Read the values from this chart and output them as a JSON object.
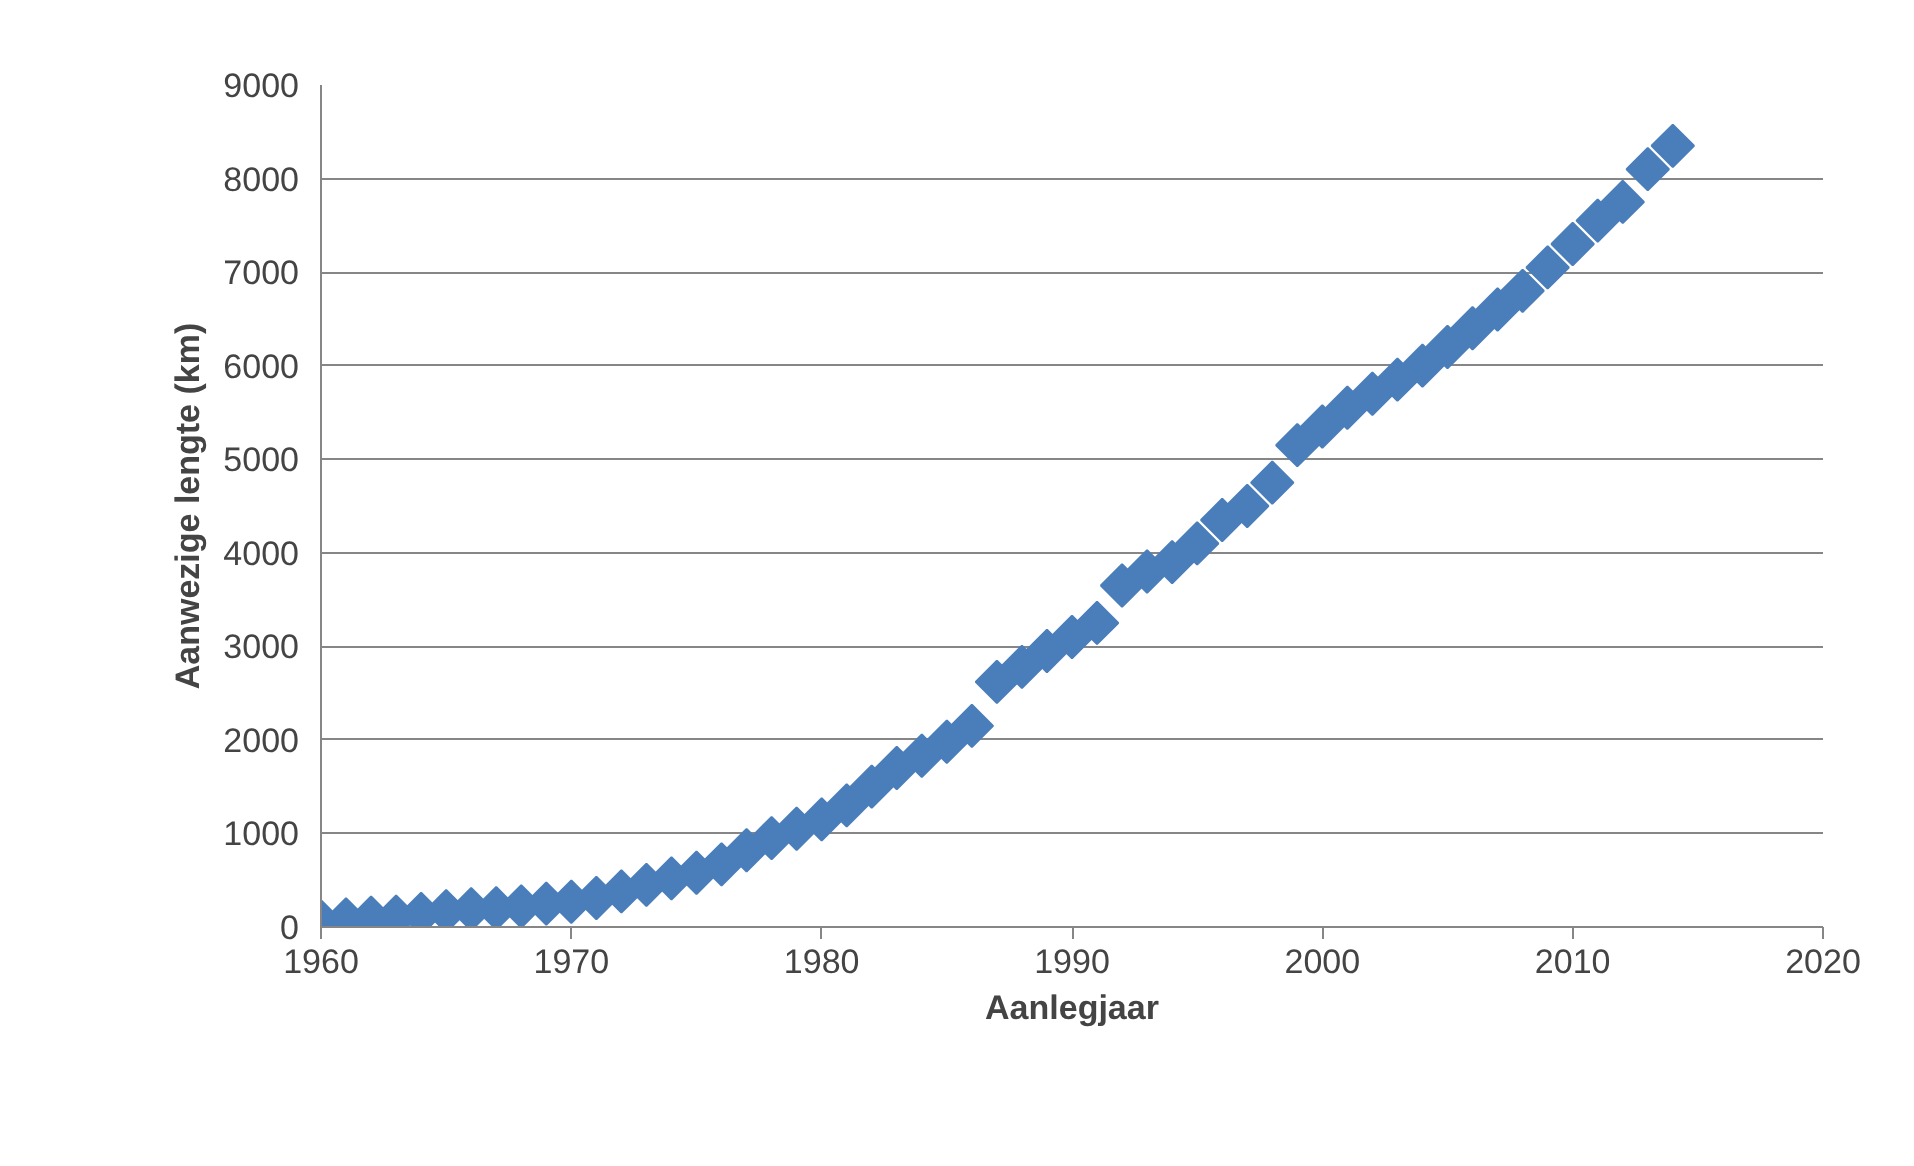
{
  "chart_data": {
    "type": "scatter",
    "xlabel": "Aanlegjaar",
    "ylabel": "Aanwezige lengte (km)",
    "x": [
      1960,
      1961,
      1962,
      1963,
      1964,
      1965,
      1966,
      1967,
      1968,
      1969,
      1970,
      1971,
      1972,
      1973,
      1974,
      1975,
      1976,
      1977,
      1978,
      1979,
      1980,
      1981,
      1982,
      1983,
      1984,
      1985,
      1986,
      1987,
      1988,
      1989,
      1990,
      1991,
      1992,
      1993,
      1994,
      1995,
      1996,
      1997,
      1998,
      1999,
      2000,
      2001,
      2002,
      2003,
      2004,
      2005,
      2006,
      2007,
      2008,
      2009,
      2010,
      2011,
      2012,
      2013,
      2014
    ],
    "series": [
      {
        "color": "#4a7ebb",
        "values": [
          60,
          80,
          100,
          110,
          140,
          170,
          190,
          200,
          220,
          250,
          270,
          310,
          380,
          450,
          520,
          580,
          670,
          820,
          950,
          1050,
          1150,
          1300,
          1500,
          1700,
          1830,
          1980,
          2150,
          2620,
          2780,
          2950,
          3100,
          3250,
          3650,
          3800,
          3900,
          4100,
          4350,
          4500,
          4750,
          5150,
          5350,
          5550,
          5700,
          5850,
          6000,
          6200,
          6400,
          6600,
          6800,
          7050,
          7300,
          7550,
          7750,
          8100,
          8350
        ]
      }
    ],
    "xlim": [
      1960,
      2020
    ],
    "xticks": [
      1960,
      1970,
      1980,
      1990,
      2000,
      2010,
      2020
    ],
    "ylim": [
      0,
      9000
    ],
    "yticks": [
      0,
      1000,
      2000,
      3000,
      4000,
      5000,
      6000,
      7000,
      8000,
      9000
    ],
    "grid": "y",
    "marker": "diamond"
  }
}
